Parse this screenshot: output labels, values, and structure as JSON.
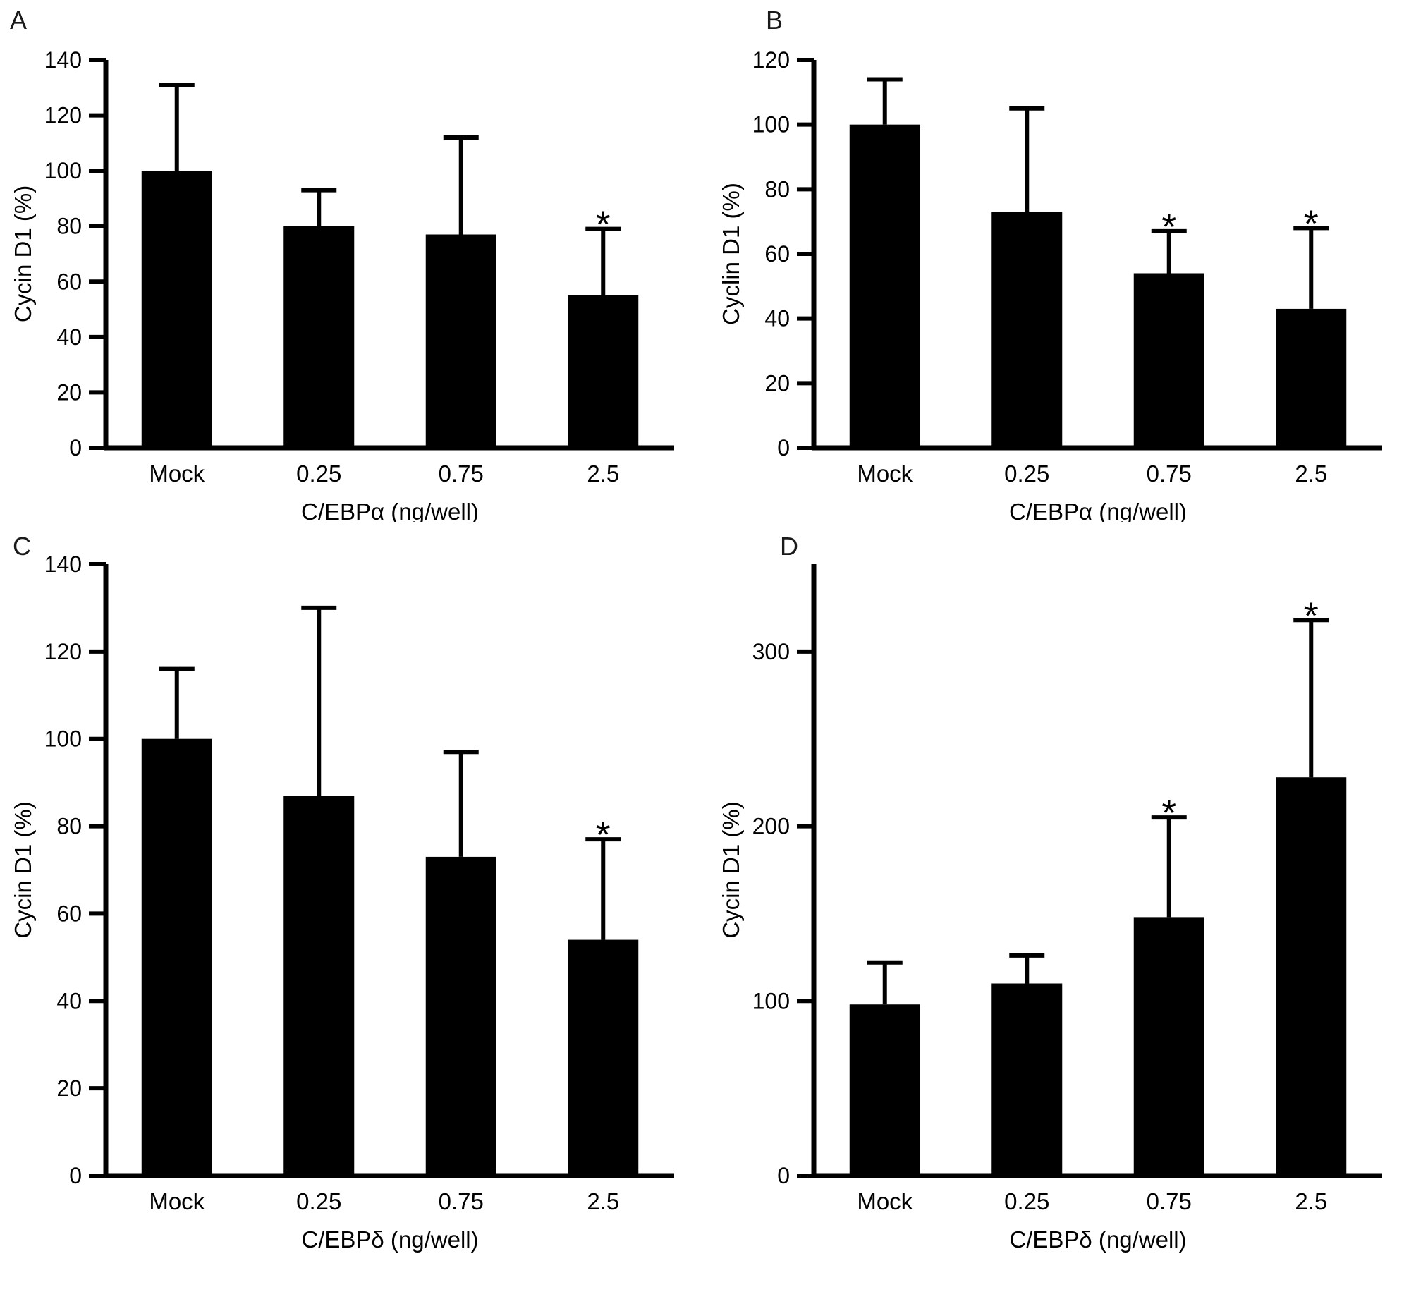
{
  "figure": {
    "background": "#ffffff",
    "bar_color": "#000000",
    "axis_color": "#000000",
    "significance_marker": "*"
  },
  "chart_data": [
    {
      "type": "bar",
      "letter": "A",
      "ylabel": "Cycin D1 (%)",
      "xlabel": "C/EBPα (ng/well)",
      "categories": [
        "Mock",
        "0.25",
        "0.75",
        "2.5"
      ],
      "values": [
        100,
        80,
        77,
        55
      ],
      "errors": [
        31,
        13,
        35,
        24
      ],
      "significant": [
        3
      ],
      "yticks": [
        0,
        20,
        40,
        60,
        80,
        100,
        120,
        140
      ],
      "ylim": [
        0,
        140
      ],
      "grid": false,
      "legend": null
    },
    {
      "type": "bar",
      "letter": "B",
      "ylabel": "Cyclin D1 (%)",
      "xlabel": "C/EBPα (ng/well)",
      "categories": [
        "Mock",
        "0.25",
        "0.75",
        "2.5"
      ],
      "values": [
        100,
        73,
        54,
        43
      ],
      "errors": [
        14,
        32,
        13,
        25
      ],
      "significant": [
        2,
        3
      ],
      "yticks": [
        0,
        20,
        40,
        60,
        80,
        100,
        120
      ],
      "ylim": [
        0,
        120
      ],
      "grid": false,
      "legend": null
    },
    {
      "type": "bar",
      "letter": "C",
      "ylabel": "Cycin D1 (%)",
      "xlabel": "C/EBPδ (ng/well)",
      "categories": [
        "Mock",
        "0.25",
        "0.75",
        "2.5"
      ],
      "values": [
        100,
        87,
        73,
        54
      ],
      "errors": [
        16,
        43,
        24,
        23
      ],
      "significant": [
        3
      ],
      "yticks": [
        0,
        20,
        40,
        60,
        80,
        100,
        120,
        140
      ],
      "ylim": [
        0,
        140
      ],
      "grid": false,
      "legend": null
    },
    {
      "type": "bar",
      "letter": "D",
      "ylabel": "Cycin D1 (%)",
      "xlabel": "C/EBPδ (ng/well)",
      "categories": [
        "Mock",
        "0.25",
        "0.75",
        "2.5"
      ],
      "values": [
        98,
        110,
        148,
        228
      ],
      "errors": [
        24,
        16,
        57,
        90
      ],
      "significant": [
        2,
        3
      ],
      "yticks": [
        0,
        100,
        200,
        300
      ],
      "ylim": [
        0,
        350
      ],
      "grid": false,
      "legend": null
    }
  ]
}
